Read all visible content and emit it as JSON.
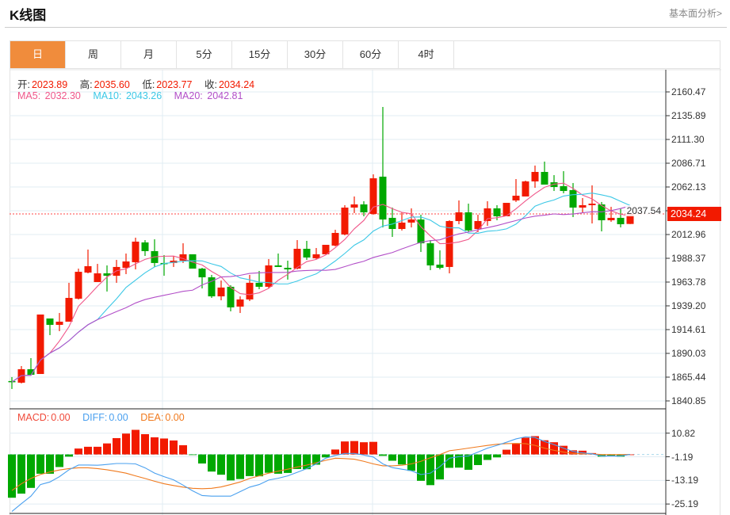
{
  "header": {
    "title": "K线图",
    "link": "基本面分析>"
  },
  "tabs": [
    {
      "label": "日",
      "active": true
    },
    {
      "label": "周"
    },
    {
      "label": "月"
    },
    {
      "label": "5分"
    },
    {
      "label": "15分"
    },
    {
      "label": "30分"
    },
    {
      "label": "60分"
    },
    {
      "label": "4时"
    }
  ],
  "ohlc": {
    "open_label": "开:",
    "open": "2023.89",
    "high_label": "高:",
    "high": "2035.60",
    "low_label": "低:",
    "low": "2023.77",
    "close_label": "收:",
    "close": "2034.24"
  },
  "ma": {
    "ma5_label": "MA5:",
    "ma5": "2032.30",
    "ma10_label": "MA10:",
    "ma10": "2043.26",
    "ma20_label": "MA20:",
    "ma20": "2042.81"
  },
  "macd_legend": {
    "macd_label": "MACD:",
    "macd": "0.00",
    "diff_label": "DIFF:",
    "diff": "0.00",
    "dea_label": "DEA:",
    "dea": "0.00"
  },
  "current_price": "2034.24",
  "colors": {
    "up": "#f21a00",
    "down": "#00a800",
    "ma5": "#f0578a",
    "ma10": "#3cc8e6",
    "ma20": "#b24fc8",
    "diff": "#4aa0ef",
    "dea": "#f07a1e",
    "accent": "#f08c3c"
  },
  "chart_data": [
    {
      "type": "candlestick",
      "title": "K线图 日",
      "y_ticks": [
        "2160.47",
        "2135.89",
        "2111.30",
        "2086.71",
        "2062.13",
        "2037.54",
        "2012.96",
        "1988.37",
        "1963.78",
        "1939.20",
        "1914.61",
        "1890.03",
        "1865.44",
        "1840.85"
      ],
      "ylim": [
        1840.85,
        2160.47
      ],
      "ohlc": [
        [
          1861.4,
          1865.5,
          1853.2,
          1860.5
        ],
        [
          1859.7,
          1876.9,
          1858.9,
          1873.6
        ],
        [
          1873.6,
          1885.1,
          1867.9,
          1867.9
        ],
        [
          1868.7,
          1930.2,
          1868.7,
          1930.2
        ],
        [
          1926.1,
          1926.1,
          1908.9,
          1919.5
        ],
        [
          1919.5,
          1931.8,
          1913.0,
          1922.8
        ],
        [
          1922.8,
          1963.0,
          1922.8,
          1947.4
        ],
        [
          1946.6,
          1977.7,
          1945.8,
          1974.4
        ],
        [
          1973.6,
          1997.4,
          1972.8,
          1980.2
        ],
        [
          1963.8,
          1982.6,
          1963.8,
          1972.8
        ],
        [
          1972.8,
          1981.0,
          1954.0,
          1970.3
        ],
        [
          1970.3,
          1986.7,
          1963.0,
          1979.4
        ],
        [
          1978.5,
          1993.3,
          1972.0,
          1985.1
        ],
        [
          1984.3,
          2009.7,
          1976.9,
          2005.6
        ],
        [
          2004.8,
          2007.2,
          1990.8,
          1995.8
        ],
        [
          1995.8,
          2008.0,
          1979.4,
          1983.5
        ],
        [
          1983.5,
          1991.7,
          1970.3,
          1982.6
        ],
        [
          1983.5,
          1990.8,
          1979.4,
          1985.9
        ],
        [
          1985.9,
          2003.9,
          1983.5,
          1992.5
        ],
        [
          1992.5,
          1992.5,
          1977.7,
          1977.7
        ],
        [
          1977.7,
          1978.5,
          1957.2,
          1968.7
        ],
        [
          1968.7,
          1971.2,
          1947.4,
          1949.0
        ],
        [
          1949.0,
          1965.4,
          1944.9,
          1958.1
        ],
        [
          1958.9,
          1960.5,
          1933.5,
          1937.6
        ],
        [
          1938.4,
          1949.0,
          1931.8,
          1945.8
        ],
        [
          1945.8,
          1971.2,
          1944.1,
          1963.0
        ],
        [
          1963.0,
          1975.3,
          1956.4,
          1958.9
        ],
        [
          1958.9,
          1987.6,
          1957.2,
          1981.0
        ],
        [
          1981.0,
          1993.3,
          1979.4,
          1979.4
        ],
        [
          1978.5,
          1985.9,
          1966.3,
          1976.9
        ],
        [
          1977.7,
          2007.2,
          1976.9,
          1998.2
        ],
        [
          1998.2,
          2006.4,
          1986.7,
          1989.2
        ],
        [
          1988.4,
          1999.0,
          1987.6,
          1992.5
        ],
        [
          1992.5,
          2002.3,
          1992.5,
          2002.3
        ],
        [
          2001.5,
          2017.9,
          2000.7,
          2014.6
        ],
        [
          2013.0,
          2043.3,
          2012.1,
          2040.8
        ],
        [
          2040.8,
          2052.3,
          2035.1,
          2044.1
        ],
        [
          2044.1,
          2047.4,
          2031.8,
          2035.9
        ],
        [
          2034.3,
          2075.2,
          2033.4,
          2071.1
        ],
        [
          2072.8,
          2144.9,
          2020.3,
          2028.5
        ],
        [
          2030.2,
          2040.8,
          2010.5,
          2018.7
        ],
        [
          2018.7,
          2035.9,
          2017.1,
          2025.3
        ],
        [
          2025.3,
          2040.0,
          2020.3,
          2028.5
        ],
        [
          2028.5,
          2033.4,
          1994.9,
          2003.9
        ],
        [
          2003.9,
          2007.2,
          1976.1,
          1981.0
        ],
        [
          1981.8,
          1996.6,
          1976.9,
          1978.5
        ],
        [
          1979.4,
          2027.7,
          1972.8,
          2026.9
        ],
        [
          2026.9,
          2048.2,
          2023.6,
          2035.9
        ],
        [
          2035.9,
          2044.9,
          2015.4,
          2017.1
        ],
        [
          2018.7,
          2033.4,
          2015.4,
          2026.9
        ],
        [
          2026.9,
          2047.4,
          2022.0,
          2040.0
        ],
        [
          2040.0,
          2043.3,
          2027.7,
          2031.8
        ],
        [
          2031.8,
          2045.7,
          2031.8,
          2045.7
        ],
        [
          2048.2,
          2070.3,
          2046.6,
          2053.1
        ],
        [
          2052.3,
          2068.7,
          2052.3,
          2067.9
        ],
        [
          2067.9,
          2084.3,
          2061.3,
          2077.7
        ],
        [
          2077.7,
          2088.4,
          2064.6,
          2064.6
        ],
        [
          2067.0,
          2074.4,
          2058.0,
          2062.1
        ],
        [
          2063.0,
          2078.5,
          2055.6,
          2058.0
        ],
        [
          2058.9,
          2066.2,
          2031.0,
          2040.8
        ],
        [
          2040.8,
          2050.7,
          2035.9,
          2043.3
        ],
        [
          2043.3,
          2063.8,
          2024.4,
          2044.9
        ],
        [
          2044.1,
          2046.6,
          2016.2,
          2027.7
        ],
        [
          2027.7,
          2041.6,
          2026.1,
          2030.2
        ],
        [
          2030.2,
          2040.0,
          2020.3,
          2023.6
        ],
        [
          2023.89,
          2035.6,
          2023.77,
          2034.24
        ]
      ],
      "ma_periods": [
        5,
        10,
        20
      ]
    },
    {
      "type": "bar+line",
      "title": "MACD",
      "y_ticks": [
        "10.82",
        "-1.19",
        "-13.19",
        "-25.19"
      ],
      "ylim": [
        -28,
        16
      ],
      "macd": [
        -22.0,
        -19.9,
        -17.0,
        -9.8,
        -9.8,
        -6.4,
        -1.1,
        3.0,
        3.9,
        3.9,
        5.6,
        8.3,
        10.6,
        12.5,
        10.3,
        8.7,
        8.1,
        7.1,
        4.7,
        -0.3,
        -4.6,
        -8.7,
        -10.3,
        -13.2,
        -12.5,
        -11.0,
        -11.1,
        -9.3,
        -9.8,
        -9.4,
        -7.4,
        -7.5,
        -5.2,
        -1.5,
        2.5,
        6.6,
        6.8,
        6.2,
        6.4,
        -0.7,
        -3.2,
        -5.1,
        -8.3,
        -13.4,
        -15.6,
        -12.7,
        -6.8,
        -6.7,
        -7.8,
        -5.4,
        -2.8,
        -1.5,
        2.4,
        5.6,
        8.5,
        9.3,
        7.2,
        6.2,
        4.4,
        2.1,
        1.9,
        0.7,
        -1.1,
        -0.9,
        -1.1,
        0
      ],
      "diff": [
        -29.0,
        -25.0,
        -21.2,
        -15.3,
        -14.0,
        -11.3,
        -7.8,
        -5.4,
        -5.4,
        -5.5,
        -5.1,
        -4.6,
        -4.6,
        -4.8,
        -6.8,
        -9.5,
        -11.3,
        -12.9,
        -15.6,
        -18.5,
        -20.9,
        -21.2,
        -21.2,
        -21.2,
        -18.9,
        -16.6,
        -15.3,
        -13.0,
        -12.1,
        -10.9,
        -9.1,
        -7.2,
        -4.8,
        -1.9,
        -0.5,
        0.5,
        0.5,
        -0.3,
        -1.3,
        -4.8,
        -6.7,
        -7.5,
        -8.3,
        -10.2,
        -9.5,
        -6.2,
        -1.9,
        -1.1,
        -0.8,
        1.2,
        3.2,
        4.6,
        6.2,
        7.9,
        8.9,
        8.6,
        6.6,
        5.0,
        3.2,
        1.5,
        0.8,
        0.3,
        -0.8,
        -0.8,
        -0.8,
        0
      ],
      "dea": [
        -18.3,
        -14.9,
        -12.2,
        -10.2,
        -8.9,
        -7.9,
        -7.2,
        -6.8,
        -6.8,
        -7.2,
        -7.8,
        -8.6,
        -9.5,
        -10.9,
        -12.2,
        -13.6,
        -14.9,
        -15.8,
        -16.6,
        -17.2,
        -17.4,
        -17.2,
        -16.5,
        -15.3,
        -14.0,
        -12.2,
        -10.9,
        -9.5,
        -8.5,
        -7.5,
        -6.4,
        -5.4,
        -4.2,
        -3.0,
        -1.9,
        -2.1,
        -2.4,
        -3.5,
        -4.8,
        -5.8,
        -5.8,
        -5.5,
        -4.8,
        -3.5,
        -1.7,
        -0.1,
        1.9,
        2.5,
        3.2,
        3.9,
        4.6,
        5.2,
        5.5,
        5.6,
        5.5,
        4.6,
        3.2,
        2.1,
        1.2,
        0.5,
        0.3,
        0.3,
        -0.1,
        -0.1,
        -0.1,
        0
      ]
    }
  ]
}
